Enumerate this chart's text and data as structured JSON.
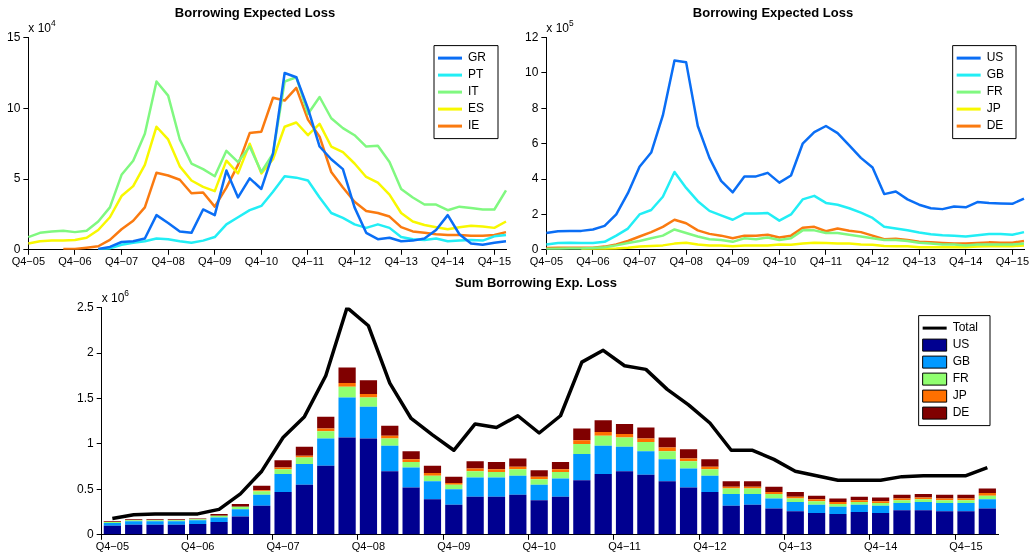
{
  "chart_data": [
    {
      "type": "line",
      "title": "Borrowing Expected Loss",
      "annotations": [
        "x 10$^{4}$"
      ],
      "categories": [
        "Q4−05",
        null,
        null,
        null,
        "Q4−06",
        null,
        null,
        null,
        "Q4−07",
        null,
        null,
        null,
        "Q4−08",
        null,
        null,
        null,
        "Q4−09",
        null,
        null,
        null,
        "Q4−10",
        null,
        null,
        null,
        "Q4−11",
        null,
        null,
        null,
        "Q4−12",
        null,
        null,
        null,
        "Q4−13",
        null,
        null,
        null,
        "Q4−14",
        null,
        null,
        null,
        "Q4−15",
        null
      ],
      "series": [
        {
          "name": "GR",
          "color": "#0a6ef5",
          "values": [
            null,
            null,
            null,
            null,
            null,
            null,
            0.05,
            0.2,
            0.55,
            0.6,
            0.8,
            2.45,
            1.9,
            1.3,
            1.2,
            2.85,
            2.45,
            5.6,
            3.7,
            5.05,
            4.3,
            6.8,
            12.5,
            12.2,
            10,
            7.3,
            6.4,
            5.7,
            3.0,
            1.2,
            0.75,
            0.85,
            0.6,
            0.65,
            0.8,
            1.4,
            2.45,
            1.1,
            0.45,
            0.35,
            0.5,
            0.6
          ]
        },
        {
          "name": "PT",
          "color": "#22eef5",
          "values": [
            null,
            null,
            null,
            null,
            null,
            null,
            0,
            0.1,
            0.35,
            0.5,
            0.6,
            0.8,
            0.75,
            0.6,
            0.5,
            0.65,
            0.9,
            1.8,
            2.3,
            2.8,
            3.1,
            4.1,
            5.2,
            5.1,
            4.9,
            3.7,
            2.6,
            2.25,
            1.8,
            1.55,
            1.8,
            1.55,
            0.9,
            0.75,
            0.7,
            0.8,
            0.6,
            0.65,
            0.7,
            0.65,
            0.95,
            1.05
          ]
        },
        {
          "name": "IT",
          "color": "#80f880",
          "values": [
            0.9,
            1.2,
            1.3,
            1.35,
            1.25,
            1.35,
            2.0,
            3.0,
            5.3,
            6.3,
            8.2,
            11.9,
            10.9,
            7.8,
            6.1,
            5.7,
            5.2,
            7.0,
            6.2,
            7.3,
            5.5,
            6.8,
            11.9,
            12.2,
            9.6,
            10.8,
            9.3,
            8.6,
            8.1,
            7.3,
            7.35,
            6.2,
            4.3,
            3.7,
            3.2,
            3.2,
            2.8,
            3.05,
            2.95,
            2.85,
            2.85,
            4.2
          ]
        },
        {
          "name": "ES",
          "color": "#f8f800",
          "values": [
            0.45,
            0.6,
            0.65,
            0.65,
            0.7,
            0.85,
            1.4,
            2.3,
            3.8,
            4.5,
            6.0,
            8.7,
            7.8,
            5.9,
            4.9,
            4.45,
            4.15,
            6.3,
            5.4,
            7.5,
            5.4,
            6.4,
            8.7,
            9.0,
            8.1,
            8.9,
            7.3,
            6.9,
            6.1,
            5.15,
            4.75,
            3.9,
            2.6,
            2.0,
            1.75,
            1.6,
            1.45,
            1.6,
            1.7,
            1.65,
            1.55,
            2.0
          ]
        },
        {
          "name": "IE",
          "color": "#fa7a10",
          "values": [
            null,
            null,
            null,
            0.05,
            0.05,
            0.15,
            0.25,
            0.7,
            1.45,
            2.05,
            3.0,
            5.45,
            5.25,
            4.95,
            4.0,
            4.05,
            3.05,
            4.4,
            6.0,
            8.25,
            8.35,
            10.75,
            10.55,
            11.45,
            9.2,
            8.0,
            5.5,
            4.4,
            3.4,
            2.75,
            2.6,
            2.35,
            1.6,
            1.3,
            1.2,
            1.1,
            1.05,
            1.05,
            1.0,
            1.0,
            1.05,
            1.25
          ]
        }
      ],
      "ylim": [
        0,
        15
      ],
      "yticks": [
        0,
        5,
        10,
        15
      ],
      "legend": "top right"
    },
    {
      "type": "line",
      "title": "Borrowing Expected Loss",
      "annotations": [
        "x 10$^{5}$"
      ],
      "categories": [
        "Q4−05",
        null,
        null,
        null,
        "Q4−06",
        null,
        null,
        null,
        "Q4−07",
        null,
        null,
        null,
        "Q4−08",
        null,
        null,
        null,
        "Q4−09",
        null,
        null,
        null,
        "Q4−10",
        null,
        null,
        null,
        "Q4−11",
        null,
        null,
        null,
        "Q4−12",
        null,
        null,
        null,
        "Q4−13",
        null,
        null,
        null,
        "Q4−14",
        null,
        null,
        null,
        "Q4−15",
        null
      ],
      "series": [
        {
          "name": "US",
          "color": "#0a6ef5",
          "values": [
            0.95,
            1.05,
            1.07,
            1.07,
            1.15,
            1.35,
            2.0,
            3.2,
            4.7,
            5.5,
            7.6,
            10.7,
            10.6,
            7.0,
            5.2,
            3.9,
            3.25,
            4.15,
            4.15,
            4.35,
            3.8,
            4.2,
            6.0,
            6.65,
            7.0,
            6.6,
            5.9,
            5.2,
            4.65,
            3.15,
            3.3,
            2.85,
            2.55,
            2.35,
            2.3,
            2.45,
            2.4,
            2.7,
            2.65,
            2.62,
            2.6,
            2.9
          ]
        },
        {
          "name": "GB",
          "color": "#22eef5",
          "values": [
            0.3,
            0.38,
            0.4,
            0.38,
            0.38,
            0.45,
            0.8,
            1.2,
            2.0,
            2.25,
            3.0,
            4.4,
            3.5,
            2.75,
            2.2,
            1.95,
            1.7,
            2.05,
            2.05,
            2.08,
            1.65,
            2.0,
            2.85,
            3.05,
            2.65,
            2.55,
            2.35,
            2.1,
            1.8,
            1.3,
            1.2,
            1.1,
            0.98,
            0.88,
            0.82,
            0.8,
            0.75,
            0.82,
            0.9,
            0.9,
            0.85,
            1.0
          ]
        },
        {
          "name": "FR",
          "color": "#80f880",
          "values": [
            0.05,
            0.06,
            0.07,
            0.08,
            0.1,
            0.15,
            0.25,
            0.38,
            0.5,
            0.65,
            0.8,
            1.15,
            0.95,
            0.75,
            0.6,
            0.55,
            0.45,
            0.65,
            0.6,
            0.7,
            0.55,
            0.65,
            1.1,
            1.1,
            0.95,
            0.95,
            0.85,
            0.75,
            0.65,
            0.55,
            0.55,
            0.5,
            0.4,
            0.35,
            0.3,
            0.3,
            0.25,
            0.3,
            0.3,
            0.3,
            0.3,
            0.35
          ]
        },
        {
          "name": "JP",
          "color": "#f8f800",
          "values": [
            null,
            null,
            null,
            0.04,
            0.05,
            0.06,
            0.08,
            0.12,
            0.18,
            0.22,
            0.25,
            0.35,
            0.4,
            0.3,
            0.25,
            0.25,
            0.2,
            0.25,
            0.25,
            0.25,
            0.3,
            0.28,
            0.35,
            0.4,
            0.38,
            0.36,
            0.35,
            0.3,
            0.28,
            0.22,
            0.2,
            0.2,
            0.15,
            0.15,
            0.15,
            0.15,
            0.15,
            0.18,
            0.2,
            0.2,
            0.2,
            0.25
          ]
        },
        {
          "name": "DE",
          "color": "#fa7a10",
          "values": [
            0.1,
            0.12,
            0.12,
            0.12,
            0.12,
            0.18,
            0.3,
            0.5,
            0.75,
            1.0,
            1.3,
            1.7,
            1.5,
            1.1,
            0.9,
            0.8,
            0.65,
            0.8,
            0.8,
            0.85,
            0.7,
            0.8,
            1.25,
            1.3,
            1.05,
            1.2,
            1.08,
            1.0,
            0.8,
            0.6,
            0.62,
            0.55,
            0.45,
            0.42,
            0.38,
            0.35,
            0.35,
            0.38,
            0.42,
            0.4,
            0.4,
            0.5
          ]
        }
      ],
      "ylim": [
        0,
        12
      ],
      "yticks": [
        0,
        2,
        4,
        6,
        8,
        10,
        12
      ],
      "legend": "top right"
    },
    {
      "type": "bar",
      "title": "Sum Borrowing Exp. Loss",
      "annotations": [
        "x 10$^{6}$"
      ],
      "stacked": true,
      "categories": [
        "Q4−05",
        null,
        null,
        null,
        "Q4−06",
        null,
        null,
        null,
        "Q4−07",
        null,
        null,
        null,
        "Q4−08",
        null,
        null,
        null,
        "Q4−09",
        null,
        null,
        null,
        "Q4−10",
        null,
        null,
        null,
        "Q4−11",
        null,
        null,
        null,
        "Q4−12",
        null,
        null,
        null,
        "Q4−13",
        null,
        null,
        null,
        "Q4−14",
        null,
        null,
        null,
        "Q4−15",
        null
      ],
      "series": [
        {
          "name": "Total",
          "type": "line",
          "color": "#000000",
          "values": [
            0.18,
            0.22,
            0.23,
            0.23,
            0.23,
            0.28,
            0.45,
            0.7,
            1.07,
            1.3,
            1.75,
            2.5,
            2.3,
            1.67,
            1.28,
            1.1,
            0.93,
            1.22,
            1.18,
            1.31,
            1.12,
            1.31,
            1.9,
            2.03,
            1.86,
            1.82,
            1.6,
            1.43,
            1.23,
            0.93,
            0.93,
            0.83,
            0.7,
            0.65,
            0.6,
            0.6,
            0.6,
            0.64,
            0.65,
            0.65,
            0.65,
            0.74
          ]
        },
        {
          "name": "US",
          "type": "bar",
          "color": "#000090",
          "values": [
            0.1,
            0.11,
            0.11,
            0.11,
            0.12,
            0.14,
            0.2,
            0.32,
            0.47,
            0.55,
            0.76,
            1.07,
            1.06,
            0.7,
            0.52,
            0.39,
            0.33,
            0.42,
            0.42,
            0.44,
            0.38,
            0.42,
            0.6,
            0.67,
            0.7,
            0.66,
            0.59,
            0.52,
            0.47,
            0.32,
            0.33,
            0.29,
            0.26,
            0.24,
            0.23,
            0.25,
            0.24,
            0.27,
            0.27,
            0.26,
            0.26,
            0.29
          ]
        },
        {
          "name": "GB",
          "type": "bar",
          "color": "#0099ff",
          "values": [
            0.03,
            0.04,
            0.04,
            0.04,
            0.04,
            0.05,
            0.08,
            0.12,
            0.2,
            0.23,
            0.3,
            0.44,
            0.35,
            0.28,
            0.22,
            0.2,
            0.17,
            0.21,
            0.21,
            0.21,
            0.17,
            0.2,
            0.29,
            0.31,
            0.27,
            0.26,
            0.24,
            0.21,
            0.18,
            0.13,
            0.12,
            0.11,
            0.1,
            0.09,
            0.08,
            0.08,
            0.08,
            0.08,
            0.09,
            0.09,
            0.09,
            0.1
          ]
        },
        {
          "name": "FR",
          "type": "bar",
          "color": "#90ff70",
          "values": [
            0.01,
            0.01,
            0.01,
            0.01,
            0.01,
            0.02,
            0.03,
            0.04,
            0.05,
            0.07,
            0.08,
            0.12,
            0.1,
            0.08,
            0.06,
            0.06,
            0.05,
            0.07,
            0.06,
            0.07,
            0.06,
            0.07,
            0.11,
            0.11,
            0.1,
            0.1,
            0.09,
            0.08,
            0.07,
            0.06,
            0.06,
            0.05,
            0.04,
            0.04,
            0.03,
            0.03,
            0.03,
            0.03,
            0.03,
            0.03,
            0.03,
            0.04
          ]
        },
        {
          "name": "JP",
          "type": "bar",
          "color": "#ff7000",
          "values": [
            null,
            null,
            null,
            null,
            null,
            null,
            null,
            0.01,
            0.02,
            0.02,
            0.03,
            0.04,
            0.04,
            0.03,
            0.03,
            0.03,
            0.02,
            0.03,
            0.03,
            0.03,
            0.03,
            0.03,
            0.04,
            0.04,
            0.04,
            0.04,
            0.04,
            0.03,
            0.03,
            0.02,
            0.02,
            0.02,
            0.02,
            0.02,
            0.02,
            0.02,
            0.02,
            0.02,
            0.02,
            0.02,
            0.02,
            0.03
          ]
        },
        {
          "name": "DE",
          "type": "bar",
          "color": "#800000",
          "values": [
            0.01,
            0.01,
            0.01,
            0.01,
            0.01,
            0.02,
            0.03,
            0.05,
            0.08,
            0.1,
            0.13,
            0.17,
            0.15,
            0.11,
            0.09,
            0.08,
            0.07,
            0.08,
            0.08,
            0.09,
            0.07,
            0.08,
            0.13,
            0.13,
            0.11,
            0.12,
            0.11,
            0.1,
            0.08,
            0.06,
            0.06,
            0.06,
            0.05,
            0.04,
            0.04,
            0.04,
            0.04,
            0.04,
            0.04,
            0.04,
            0.04,
            0.05
          ]
        }
      ],
      "ylim": [
        0,
        2.5
      ],
      "yticks": [
        0,
        0.5,
        1,
        1.5,
        2,
        2.5
      ],
      "legend": "top right"
    }
  ]
}
